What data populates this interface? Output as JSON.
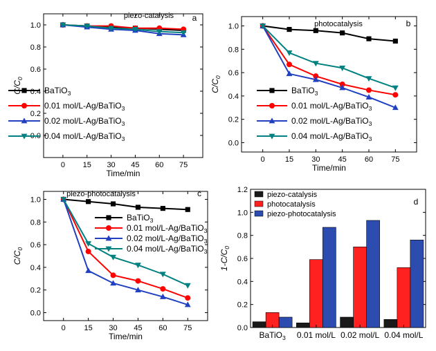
{
  "chart_data": [
    {
      "type": "line",
      "panel_letter": "a",
      "title": "piezo-catalysis",
      "xlabel": "Time/min",
      "ylabel": "C/C0",
      "ylabel_main": "C/C",
      "ylabel_sub": "0",
      "x": [
        0,
        15,
        30,
        45,
        60,
        75
      ],
      "xlim": [
        -12,
        87
      ],
      "ylim": [
        -0.2,
        1.1
      ],
      "yticks": [
        0.0,
        0.2,
        0.4,
        0.6,
        0.8,
        1.0
      ],
      "ytick_labels": [
        "0.0",
        "0.2",
        "0.4",
        "0.6",
        "0.8",
        "1.0"
      ],
      "xtick_labels": [
        "0",
        "15",
        "30",
        "45",
        "60",
        "75"
      ],
      "legend_position": "left",
      "series": [
        {
          "name": "BaTiO3",
          "name_main": "BaTiO",
          "name_sub": "3",
          "color": "#000000",
          "marker": "square",
          "values": [
            1.0,
            0.99,
            0.98,
            0.97,
            0.96,
            0.95
          ]
        },
        {
          "name": "0.01 mol/L-Ag/BaTiO3",
          "name_main": "0.01 mol/L-Ag/BaTiO",
          "name_sub": "3",
          "color": "#ff0000",
          "marker": "circle",
          "values": [
            1.0,
            0.99,
            0.99,
            0.97,
            0.97,
            0.96
          ]
        },
        {
          "name": "0.02 mol/L-Ag/BaTiO3",
          "name_main": "0.02 mol/L-Ag/BaTiO",
          "name_sub": "3",
          "color": "#2040c0",
          "marker": "triangle-up",
          "values": [
            1.0,
            0.98,
            0.96,
            0.95,
            0.92,
            0.91
          ]
        },
        {
          "name": "0.04 mol/L-Ag/BaTiO3",
          "name_main": "0.04 mol/L-Ag/BaTiO",
          "name_sub": "3",
          "color": "#008080",
          "marker": "triangle-down",
          "values": [
            1.0,
            0.99,
            0.97,
            0.96,
            0.94,
            0.93
          ]
        }
      ]
    },
    {
      "type": "line",
      "panel_letter": "b",
      "title": "photocatalysis",
      "xlabel": "Time/min",
      "ylabel": "C/C0",
      "ylabel_main": "C/C",
      "ylabel_sub": "0",
      "x": [
        0,
        15,
        30,
        45,
        60,
        75
      ],
      "xlim": [
        -12,
        87
      ],
      "ylim": [
        -0.08,
        1.08
      ],
      "yticks": [
        0.0,
        0.2,
        0.4,
        0.6,
        0.8,
        1.0
      ],
      "ytick_labels": [
        "0.0",
        "0.2",
        "0.4",
        "0.6",
        "0.8",
        "1.0"
      ],
      "xtick_labels": [
        "0",
        "15",
        "30",
        "45",
        "60",
        "75"
      ],
      "legend_position": "bottom-left",
      "series": [
        {
          "name": "BaTiO3",
          "name_main": "BaTiO",
          "name_sub": "3",
          "color": "#000000",
          "marker": "square",
          "values": [
            1.0,
            0.97,
            0.96,
            0.94,
            0.89,
            0.87
          ]
        },
        {
          "name": "0.01 mol/L-Ag/BaTiO3",
          "name_main": "0.01 mol/L-Ag/BaTiO",
          "name_sub": "3",
          "color": "#ff0000",
          "marker": "circle",
          "values": [
            1.0,
            0.67,
            0.57,
            0.5,
            0.45,
            0.41
          ]
        },
        {
          "name": "0.02 mol/L-Ag/BaTiO3",
          "name_main": "0.02 mol/L-Ag/BaTiO",
          "name_sub": "3",
          "color": "#2040c0",
          "marker": "triangle-up",
          "values": [
            1.0,
            0.59,
            0.54,
            0.47,
            0.39,
            0.3
          ]
        },
        {
          "name": "0.04 mol/L-Ag/BaTiO3",
          "name_main": "0.04 mol/L-Ag/BaTiO",
          "name_sub": "3",
          "color": "#008080",
          "marker": "triangle-down",
          "values": [
            1.0,
            0.77,
            0.68,
            0.64,
            0.55,
            0.47
          ]
        }
      ]
    },
    {
      "type": "line",
      "panel_letter": "c",
      "title": "piezo-photocatalysis",
      "xlabel": "Time/min",
      "ylabel": "C/C0",
      "ylabel_main": "C/C",
      "ylabel_sub": "0",
      "x": [
        0,
        15,
        30,
        45,
        60,
        75
      ],
      "xlim": [
        -12,
        87
      ],
      "ylim": [
        -0.07,
        1.07
      ],
      "yticks": [
        0.0,
        0.2,
        0.4,
        0.6,
        0.8,
        1.0
      ],
      "ytick_labels": [
        "0.0",
        "0.2",
        "0.4",
        "0.6",
        "0.8",
        "1.0"
      ],
      "xtick_labels": [
        "0",
        "15",
        "30",
        "45",
        "60",
        "75"
      ],
      "legend_position": "right",
      "series": [
        {
          "name": "BaTiO3",
          "name_main": "BaTiO",
          "name_sub": "3",
          "color": "#000000",
          "marker": "square",
          "values": [
            1.0,
            0.98,
            0.96,
            0.93,
            0.92,
            0.91
          ]
        },
        {
          "name": "0.01 mol/L-Ag/BaTiO3",
          "name_main": "0.01 mol/L-Ag/BaTiO",
          "name_sub": "3",
          "color": "#ff0000",
          "marker": "circle",
          "values": [
            1.0,
            0.54,
            0.33,
            0.28,
            0.21,
            0.13
          ]
        },
        {
          "name": "0.02 mol/L-Ag/BaTiO3",
          "name_main": "0.02 mol/L-Ag/BaTiO",
          "name_sub": "3",
          "color": "#2040c0",
          "marker": "triangle-up",
          "values": [
            1.0,
            0.37,
            0.26,
            0.2,
            0.14,
            0.07
          ]
        },
        {
          "name": "0.04 mol/L-Ag/BaTiO3",
          "name_main": "0.04 mol/L-Ag/BaTiO",
          "name_sub": "3",
          "color": "#008080",
          "marker": "triangle-down",
          "values": [
            1.0,
            0.61,
            0.49,
            0.42,
            0.34,
            0.24
          ]
        }
      ]
    },
    {
      "type": "bar",
      "panel_letter": "d",
      "title": "",
      "xlabel": "",
      "ylabel": "1-C/C0",
      "ylabel_main": "1-C/C",
      "ylabel_sub": "0",
      "categories": [
        "BaTiO3",
        "0.01 mol/L",
        "0.02 mol/L",
        "0.04 mol/L"
      ],
      "category_labels": [
        {
          "main": "BaTiO",
          "sub": "3"
        },
        {
          "main": "0.01 mol/L",
          "sub": ""
        },
        {
          "main": "0.02 mol/L",
          "sub": ""
        },
        {
          "main": "0.04 mol/L",
          "sub": ""
        }
      ],
      "ylim": [
        0,
        1.2
      ],
      "yticks": [
        0.0,
        0.2,
        0.4,
        0.6,
        0.8,
        1.0,
        1.2
      ],
      "ytick_labels": [
        "0.0",
        "0.2",
        "0.4",
        "0.6",
        "0.8",
        "1.0",
        "1.2"
      ],
      "legend_position": "top-left",
      "series": [
        {
          "name": "piezo-catalysis",
          "color": "#1a1a1a",
          "values": [
            0.05,
            0.04,
            0.09,
            0.07
          ]
        },
        {
          "name": "photocatalysis",
          "color": "#ff2020",
          "values": [
            0.13,
            0.59,
            0.7,
            0.52
          ]
        },
        {
          "name": "piezo-photocatalysis",
          "color": "#2c4cb0",
          "values": [
            0.09,
            0.87,
            0.93,
            0.76
          ]
        }
      ]
    }
  ]
}
